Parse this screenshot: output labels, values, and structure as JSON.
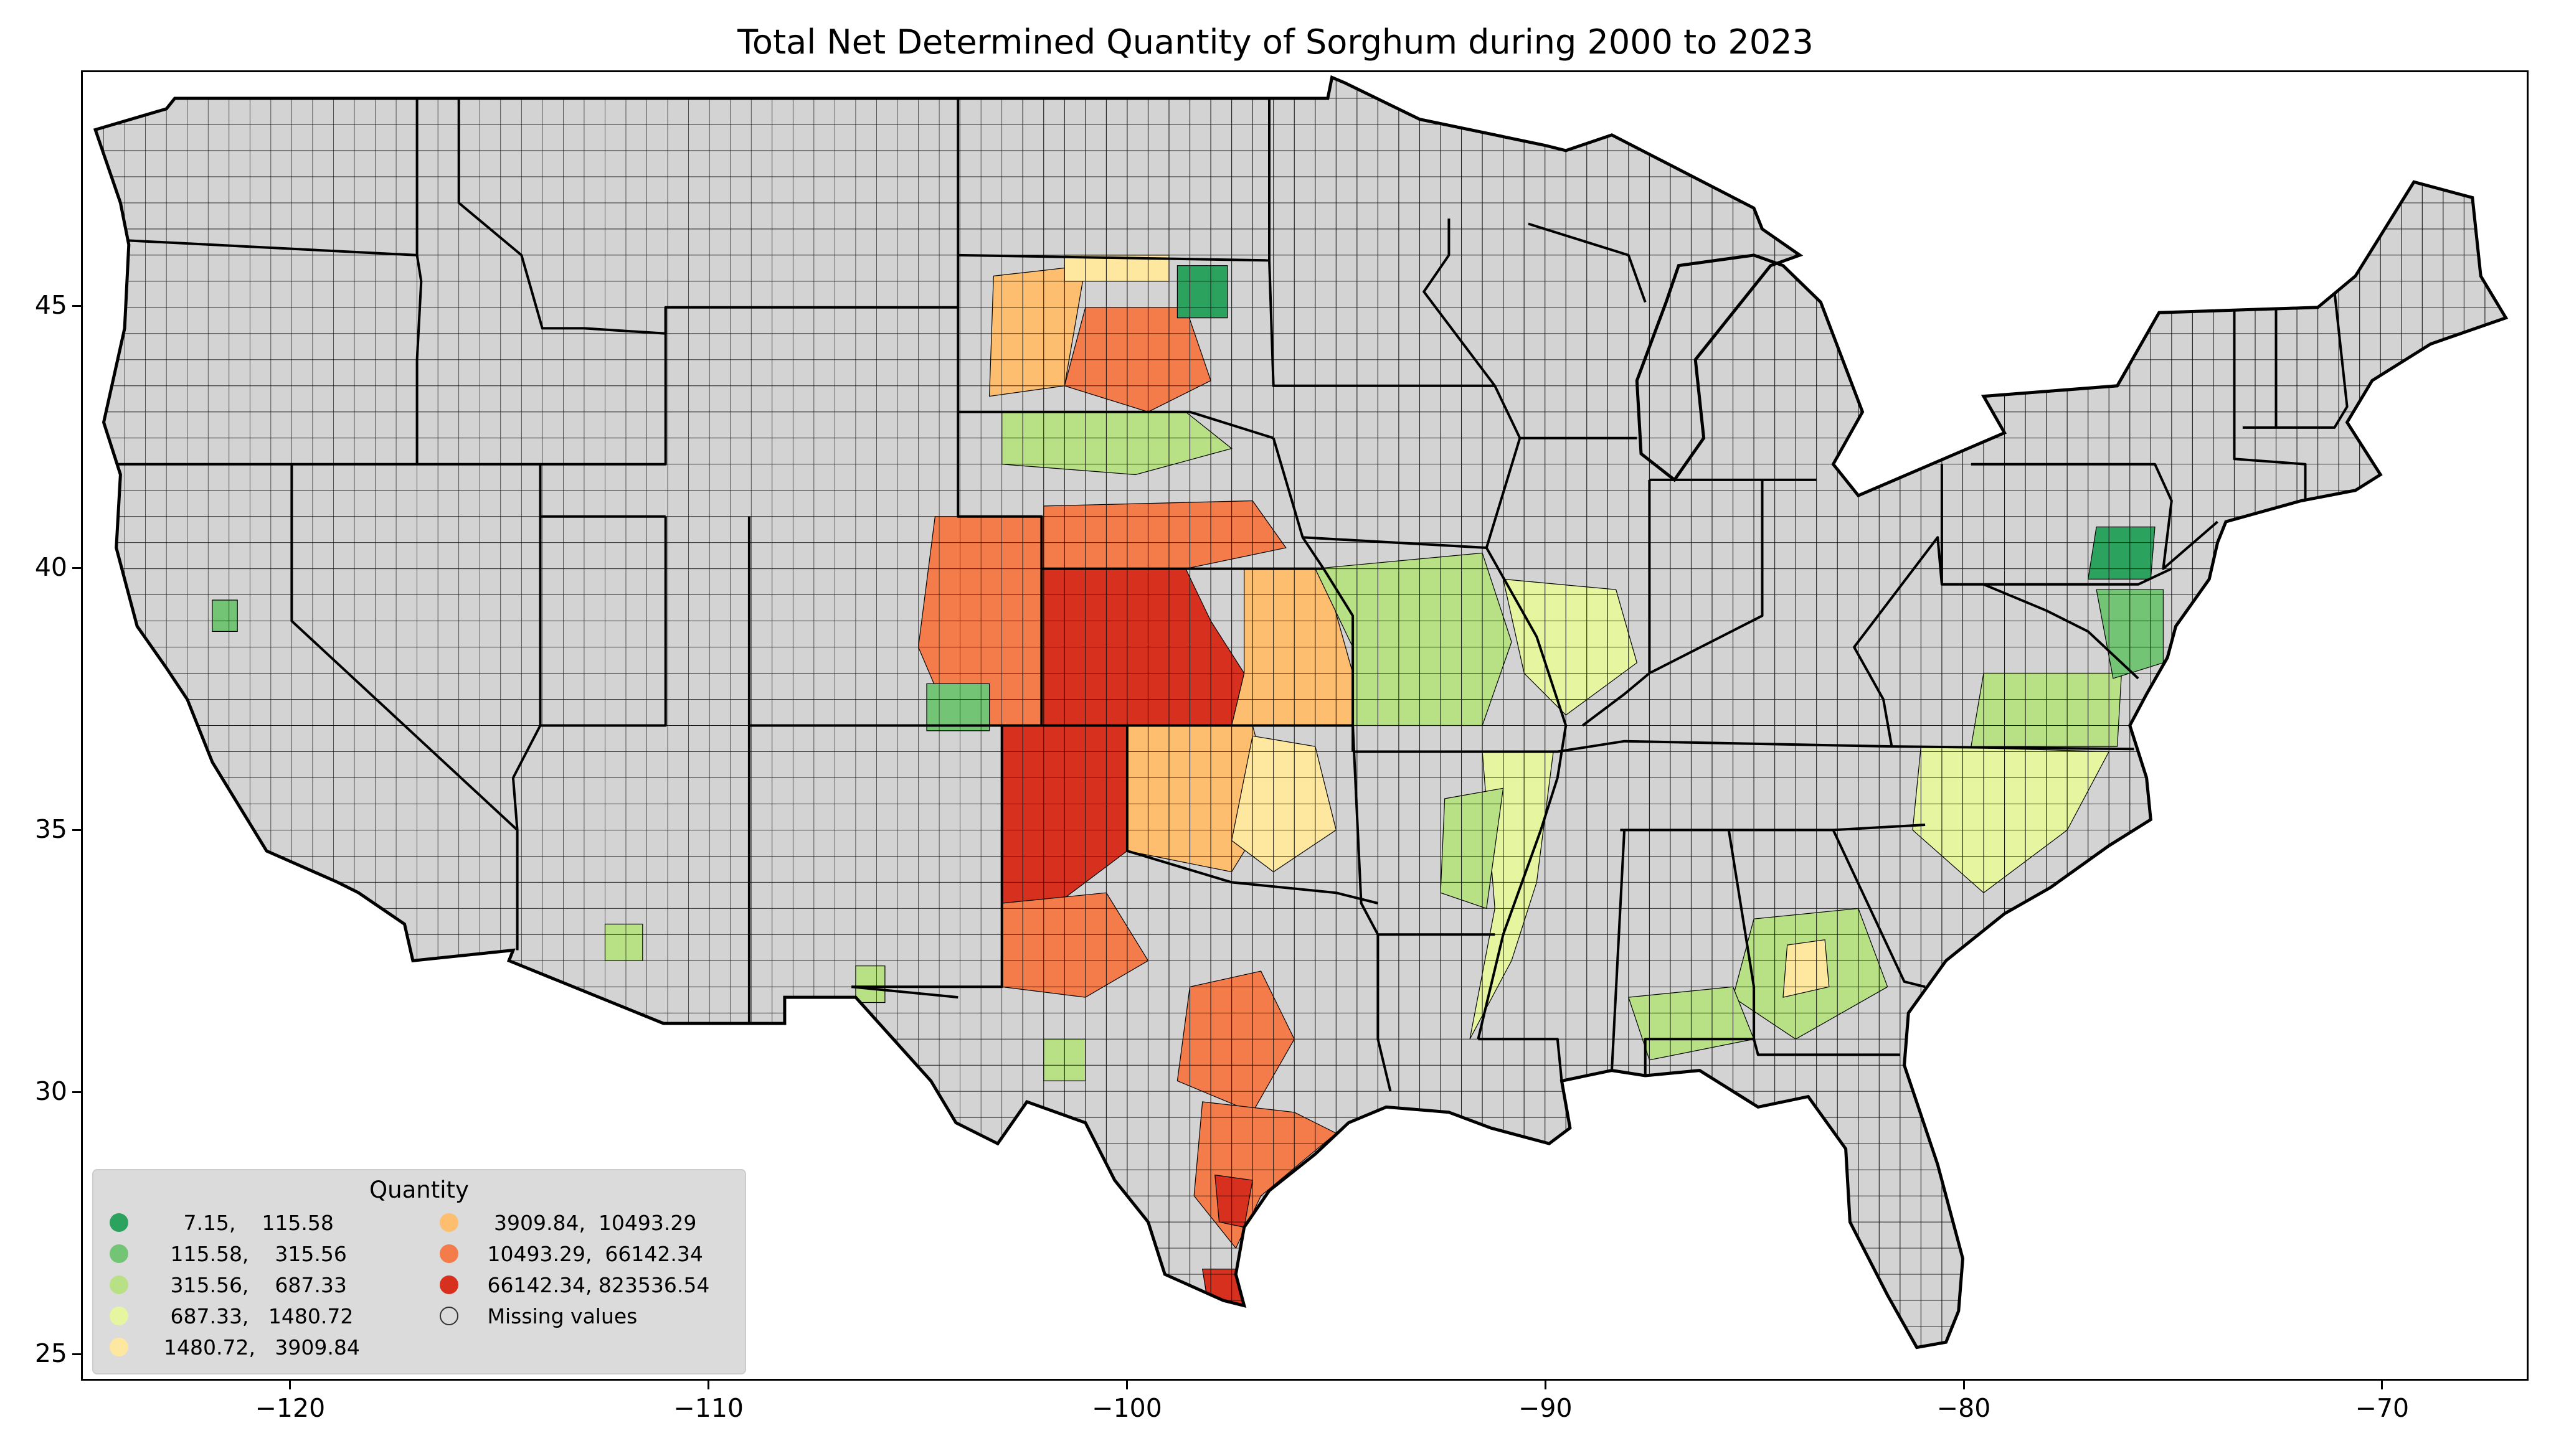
{
  "title": "Total Net Determined Quantity of Sorghum during 2000 to 2023",
  "axes": {
    "x_ticks": [
      "−120",
      "−110",
      "−100",
      "−90",
      "−80",
      "−70"
    ],
    "y_ticks": [
      "25",
      "30",
      "35",
      "40",
      "45"
    ]
  },
  "colors": {
    "missing": "#d3d3d3",
    "border": "#000000",
    "c1": "#2ca25f",
    "c2": "#74c476",
    "c3": "#b8e186",
    "c4": "#e6f5a0",
    "c5": "#fee8a0",
    "c6": "#fdbf6f",
    "c7": "#f47c4b",
    "c8": "#d7301f"
  },
  "legend": {
    "title": "Quantity",
    "items": [
      {
        "label": "     7.15,    115.58",
        "color": "#2ca25f"
      },
      {
        "label": "   115.58,    315.56",
        "color": "#74c476"
      },
      {
        "label": "   315.56,    687.33",
        "color": "#b8e186"
      },
      {
        "label": "   687.33,   1480.72",
        "color": "#e6f5a0"
      },
      {
        "label": "  1480.72,   3909.84",
        "color": "#fee8a0"
      },
      {
        "label": "  3909.84,  10493.29",
        "color": "#fdbf6f"
      },
      {
        "label": " 10493.29,  66142.34",
        "color": "#f47c4b"
      },
      {
        "label": " 66142.34, 823536.54",
        "color": "#d7301f"
      },
      {
        "label": " Missing values",
        "color": "#d3d3d3"
      }
    ]
  },
  "chart_data": {
    "type": "choropleth",
    "title": "Total Net Determined Quantity of Sorghum during 2000 to 2023",
    "xlim": [
      -125,
      -66.5
    ],
    "ylim": [
      24.5,
      49.5
    ],
    "xticks": [
      -120,
      -110,
      -100,
      -90,
      -80,
      -70
    ],
    "yticks": [
      25,
      30,
      35,
      40,
      45
    ],
    "legend_title": "Quantity",
    "bins": [
      [
        7.15,
        115.58
      ],
      [
        115.58,
        315.56
      ],
      [
        315.56,
        687.33
      ],
      [
        687.33,
        1480.72
      ],
      [
        1480.72,
        3909.84
      ],
      [
        3909.84,
        10493.29
      ],
      [
        10493.29,
        66142.34
      ],
      [
        66142.34,
        823536.54
      ]
    ],
    "legend_placement": "lower-left",
    "grid": false
  }
}
